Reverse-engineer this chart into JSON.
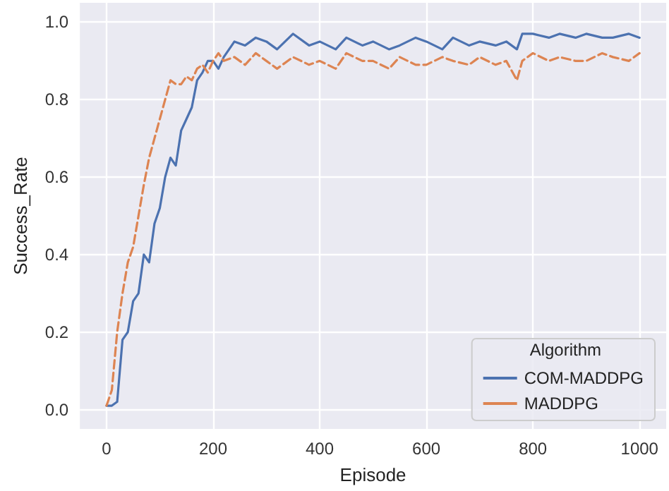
{
  "chart_data": {
    "type": "line",
    "xlabel": "Episode",
    "ylabel": "Success_Rate",
    "legend_title": "Algorithm",
    "legend": "bottom right",
    "grid": true,
    "marker": "none",
    "xlim": [
      -50,
      1050
    ],
    "xticks": [
      0,
      200,
      400,
      600,
      800,
      1000
    ],
    "ylim": [
      -0.05,
      1.05
    ],
    "yticks": [
      {
        "value": 0,
        "label": "0.0"
      },
      {
        "value": 0.2,
        "label": "0.2"
      },
      {
        "value": 0.4,
        "label": "0.4"
      },
      {
        "value": 0.6,
        "label": "0.6"
      },
      {
        "value": 0.8,
        "label": "0.8"
      },
      {
        "value": 1,
        "label": "1.0"
      }
    ],
    "series": [
      {
        "name": "COM-MADDPG",
        "color": "#4c72b0",
        "line_style": "solid",
        "x": [
          0,
          10,
          20,
          25,
          30,
          40,
          50,
          60,
          70,
          80,
          90,
          100,
          110,
          120,
          130,
          140,
          150,
          160,
          170,
          180,
          190,
          200,
          210,
          220,
          230,
          240,
          260,
          280,
          300,
          320,
          350,
          380,
          400,
          430,
          450,
          480,
          500,
          530,
          550,
          580,
          600,
          630,
          650,
          680,
          700,
          730,
          750,
          770,
          780,
          800,
          830,
          850,
          880,
          900,
          930,
          950,
          980,
          1000
        ],
        "values": [
          0.01,
          0.01,
          0.02,
          0.1,
          0.18,
          0.2,
          0.28,
          0.3,
          0.4,
          0.38,
          0.48,
          0.52,
          0.6,
          0.65,
          0.63,
          0.72,
          0.75,
          0.78,
          0.85,
          0.87,
          0.9,
          0.9,
          0.88,
          0.91,
          0.93,
          0.95,
          0.94,
          0.96,
          0.95,
          0.93,
          0.97,
          0.94,
          0.95,
          0.93,
          0.96,
          0.94,
          0.95,
          0.93,
          0.94,
          0.96,
          0.95,
          0.93,
          0.96,
          0.94,
          0.95,
          0.94,
          0.95,
          0.93,
          0.97,
          0.97,
          0.96,
          0.97,
          0.96,
          0.97,
          0.96,
          0.96,
          0.97,
          0.96
        ]
      },
      {
        "name": "MADDPG",
        "color": "#dd8452",
        "line_style": "dashed",
        "x": [
          0,
          10,
          20,
          30,
          40,
          50,
          60,
          70,
          80,
          90,
          100,
          110,
          120,
          130,
          140,
          150,
          160,
          170,
          180,
          190,
          200,
          210,
          220,
          240,
          260,
          280,
          300,
          320,
          350,
          380,
          400,
          430,
          450,
          480,
          500,
          530,
          550,
          580,
          600,
          630,
          650,
          680,
          700,
          730,
          750,
          770,
          780,
          800,
          830,
          850,
          880,
          900,
          930,
          950,
          980,
          1000
        ],
        "values": [
          0.01,
          0.05,
          0.2,
          0.3,
          0.38,
          0.42,
          0.5,
          0.58,
          0.65,
          0.7,
          0.75,
          0.8,
          0.85,
          0.84,
          0.84,
          0.86,
          0.85,
          0.88,
          0.89,
          0.87,
          0.9,
          0.92,
          0.9,
          0.91,
          0.89,
          0.92,
          0.9,
          0.88,
          0.91,
          0.89,
          0.9,
          0.88,
          0.92,
          0.9,
          0.9,
          0.88,
          0.91,
          0.89,
          0.89,
          0.91,
          0.9,
          0.89,
          0.91,
          0.89,
          0.9,
          0.85,
          0.9,
          0.92,
          0.9,
          0.91,
          0.9,
          0.9,
          0.92,
          0.91,
          0.9,
          0.92
        ]
      }
    ]
  }
}
